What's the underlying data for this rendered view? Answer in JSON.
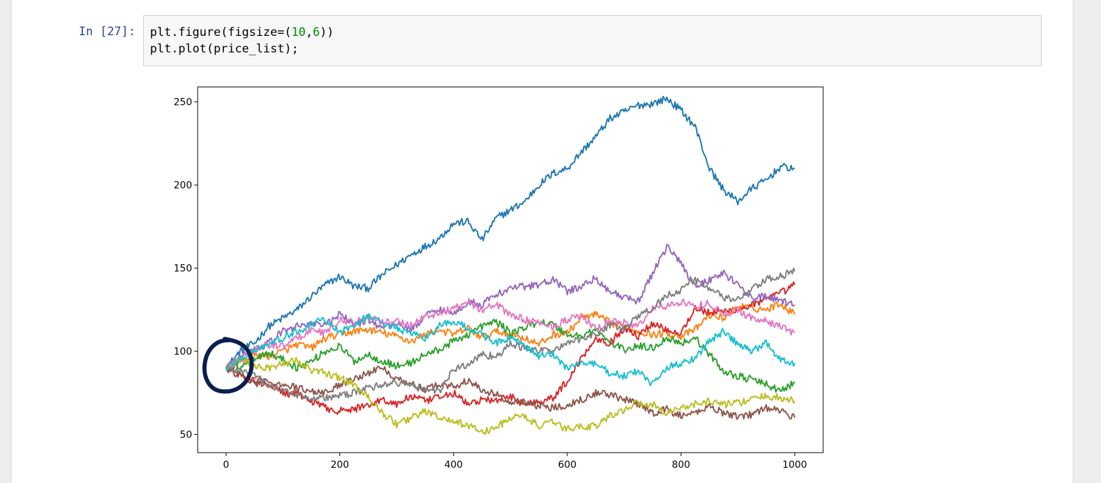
{
  "cell": {
    "prompt": "In [27]:",
    "code_line1_prefix": "plt.figure(figsize=(",
    "code_num1": "10",
    "code_sep": ",",
    "code_num2": "6",
    "code_line1_suffix": "))",
    "code_line2": "plt.plot(price_list);"
  },
  "colors": {
    "annotation_circle": "#0b1f4f",
    "series": [
      "#1f77b4",
      "#ff7f0e",
      "#2ca02c",
      "#d62728",
      "#9467bd",
      "#8c564b",
      "#e377c2",
      "#7f7f7f",
      "#bcbd22",
      "#17becf"
    ]
  },
  "chart_data": {
    "type": "line",
    "title": "",
    "xlabel": "",
    "ylabel": "",
    "xlim": [
      -50,
      1050
    ],
    "ylim": [
      39,
      259
    ],
    "xticks": [
      0,
      200,
      400,
      600,
      800,
      1000
    ],
    "yticks": [
      50,
      100,
      150,
      200,
      250
    ],
    "grid": false,
    "legend": "none",
    "annotation": "hand-drawn circle around starting point (x=0, y≈90)",
    "series": [
      {
        "color": "#1f77b4",
        "x": [
          0,
          25,
          50,
          75,
          100,
          125,
          150,
          175,
          200,
          225,
          250,
          275,
          300,
          325,
          350,
          375,
          400,
          425,
          450,
          475,
          500,
          525,
          550,
          575,
          600,
          625,
          650,
          675,
          700,
          725,
          750,
          775,
          800,
          825,
          850,
          875,
          900,
          925,
          950,
          975,
          1000
        ],
        "y": [
          90,
          100,
          105,
          115,
          120,
          125,
          133,
          140,
          145,
          139,
          138,
          146,
          152,
          158,
          163,
          168,
          177,
          178,
          167,
          180,
          185,
          190,
          200,
          207,
          210,
          220,
          229,
          240,
          244,
          248,
          249,
          252,
          245,
          235,
          210,
          197,
          190,
          198,
          203,
          211,
          210
        ]
      },
      {
        "color": "#ff7f0e",
        "x": [
          0,
          25,
          50,
          75,
          100,
          125,
          150,
          175,
          200,
          225,
          250,
          275,
          300,
          325,
          350,
          375,
          400,
          425,
          450,
          475,
          500,
          525,
          550,
          575,
          600,
          625,
          650,
          675,
          700,
          725,
          750,
          775,
          800,
          825,
          850,
          875,
          900,
          925,
          950,
          975,
          1000
        ],
        "y": [
          90,
          94,
          98,
          97,
          100,
          104,
          102,
          108,
          110,
          112,
          113,
          111,
          109,
          106,
          110,
          113,
          110,
          114,
          108,
          112,
          110,
          108,
          104,
          110,
          111,
          120,
          122,
          117,
          115,
          112,
          110,
          111,
          109,
          113,
          122,
          120,
          127,
          126,
          125,
          129,
          122
        ]
      },
      {
        "color": "#2ca02c",
        "x": [
          0,
          25,
          50,
          75,
          100,
          125,
          150,
          175,
          200,
          225,
          250,
          275,
          300,
          325,
          350,
          375,
          400,
          425,
          450,
          475,
          500,
          525,
          550,
          575,
          600,
          625,
          650,
          675,
          700,
          725,
          750,
          775,
          800,
          825,
          850,
          875,
          900,
          925,
          950,
          975,
          1000
        ],
        "y": [
          90,
          91,
          96,
          99,
          95,
          90,
          94,
          100,
          103,
          94,
          98,
          94,
          91,
          93,
          98,
          101,
          106,
          110,
          115,
          118,
          111,
          114,
          118,
          116,
          110,
          109,
          113,
          105,
          101,
          103,
          102,
          108,
          105,
          108,
          98,
          88,
          85,
          83,
          80,
          76,
          81
        ]
      },
      {
        "color": "#d62728",
        "x": [
          0,
          25,
          50,
          75,
          100,
          125,
          150,
          175,
          200,
          225,
          250,
          275,
          300,
          325,
          350,
          375,
          400,
          425,
          450,
          475,
          500,
          525,
          550,
          575,
          600,
          625,
          650,
          675,
          700,
          725,
          750,
          775,
          800,
          825,
          850,
          875,
          900,
          925,
          950,
          975,
          1000
        ],
        "y": [
          90,
          85,
          82,
          80,
          75,
          74,
          70,
          66,
          64,
          65,
          68,
          71,
          68,
          73,
          70,
          72,
          75,
          68,
          71,
          70,
          73,
          68,
          70,
          72,
          82,
          96,
          108,
          105,
          114,
          109,
          117,
          113,
          111,
          126,
          123,
          124,
          125,
          128,
          131,
          135,
          140
        ]
      },
      {
        "color": "#9467bd",
        "x": [
          0,
          25,
          50,
          75,
          100,
          125,
          150,
          175,
          200,
          225,
          250,
          275,
          300,
          325,
          350,
          375,
          400,
          425,
          450,
          475,
          500,
          525,
          550,
          575,
          600,
          625,
          650,
          675,
          700,
          725,
          750,
          775,
          800,
          825,
          850,
          875,
          900,
          925,
          950,
          975,
          1000
        ],
        "y": [
          90,
          97,
          101,
          105,
          112,
          115,
          117,
          116,
          122,
          116,
          119,
          114,
          117,
          113,
          121,
          126,
          122,
          130,
          128,
          134,
          138,
          139,
          140,
          143,
          136,
          139,
          144,
          136,
          132,
          130,
          147,
          163,
          153,
          139,
          143,
          147,
          140,
          132,
          133,
          130,
          128
        ]
      },
      {
        "color": "#8c564b",
        "x": [
          0,
          25,
          50,
          75,
          100,
          125,
          150,
          175,
          200,
          225,
          250,
          275,
          300,
          325,
          350,
          375,
          400,
          425,
          450,
          475,
          500,
          525,
          550,
          575,
          600,
          625,
          650,
          675,
          700,
          725,
          750,
          775,
          800,
          825,
          850,
          875,
          900,
          925,
          950,
          975,
          1000
        ],
        "y": [
          90,
          86,
          80,
          82,
          80,
          78,
          76,
          75,
          80,
          84,
          87,
          90,
          84,
          80,
          77,
          80,
          79,
          82,
          77,
          74,
          69,
          70,
          67,
          66,
          68,
          71,
          75,
          74,
          71,
          68,
          63,
          65,
          61,
          63,
          67,
          63,
          61,
          62,
          66,
          64,
          60
        ]
      },
      {
        "color": "#e377c2",
        "x": [
          0,
          25,
          50,
          75,
          100,
          125,
          150,
          175,
          200,
          225,
          250,
          275,
          300,
          325,
          350,
          375,
          400,
          425,
          450,
          475,
          500,
          525,
          550,
          575,
          600,
          625,
          650,
          675,
          700,
          725,
          750,
          775,
          800,
          825,
          850,
          875,
          900,
          925,
          950,
          975,
          1000
        ],
        "y": [
          90,
          95,
          101,
          104,
          103,
          108,
          113,
          111,
          119,
          117,
          121,
          117,
          118,
          116,
          121,
          123,
          126,
          130,
          125,
          128,
          122,
          119,
          117,
          115,
          119,
          121,
          113,
          118,
          117,
          115,
          126,
          127,
          130,
          127,
          129,
          122,
          125,
          120,
          118,
          115,
          111
        ]
      },
      {
        "color": "#7f7f7f",
        "x": [
          0,
          25,
          50,
          75,
          100,
          125,
          150,
          175,
          200,
          225,
          250,
          275,
          300,
          325,
          350,
          375,
          400,
          425,
          450,
          475,
          500,
          525,
          550,
          575,
          600,
          625,
          650,
          675,
          700,
          725,
          750,
          775,
          800,
          825,
          850,
          875,
          900,
          925,
          950,
          975,
          1000
        ],
        "y": [
          90,
          87,
          86,
          79,
          77,
          74,
          72,
          72,
          73,
          75,
          78,
          80,
          81,
          80,
          77,
          76,
          89,
          92,
          98,
          97,
          104,
          102,
          100,
          101,
          104,
          108,
          110,
          116,
          113,
          121,
          126,
          134,
          137,
          143,
          138,
          132,
          131,
          137,
          143,
          145,
          148
        ]
      },
      {
        "color": "#bcbd22",
        "x": [
          0,
          25,
          50,
          75,
          100,
          125,
          150,
          175,
          200,
          225,
          250,
          275,
          300,
          325,
          350,
          375,
          400,
          425,
          450,
          475,
          500,
          525,
          550,
          575,
          600,
          625,
          650,
          675,
          700,
          725,
          750,
          775,
          800,
          825,
          850,
          875,
          900,
          925,
          950,
          975,
          1000
        ],
        "y": [
          90,
          95,
          92,
          90,
          92,
          95,
          88,
          87,
          84,
          80,
          72,
          63,
          56,
          60,
          64,
          60,
          57,
          56,
          51,
          54,
          60,
          61,
          55,
          57,
          53,
          55,
          55,
          61,
          65,
          69,
          68,
          63,
          66,
          68,
          70,
          68,
          69,
          71,
          73,
          72,
          70
        ]
      },
      {
        "color": "#17becf",
        "x": [
          0,
          25,
          50,
          75,
          100,
          125,
          150,
          175,
          200,
          225,
          250,
          275,
          300,
          325,
          350,
          375,
          400,
          425,
          450,
          475,
          500,
          525,
          550,
          575,
          600,
          625,
          650,
          675,
          700,
          725,
          750,
          775,
          800,
          825,
          850,
          875,
          900,
          925,
          950,
          975,
          1000
        ],
        "y": [
          90,
          95,
          101,
          104,
          108,
          112,
          116,
          119,
          111,
          116,
          121,
          117,
          114,
          110,
          108,
          115,
          118,
          114,
          110,
          105,
          108,
          103,
          97,
          98,
          90,
          93,
          92,
          87,
          85,
          88,
          80,
          90,
          93,
          96,
          106,
          112,
          104,
          100,
          105,
          95,
          93
        ]
      }
    ]
  }
}
